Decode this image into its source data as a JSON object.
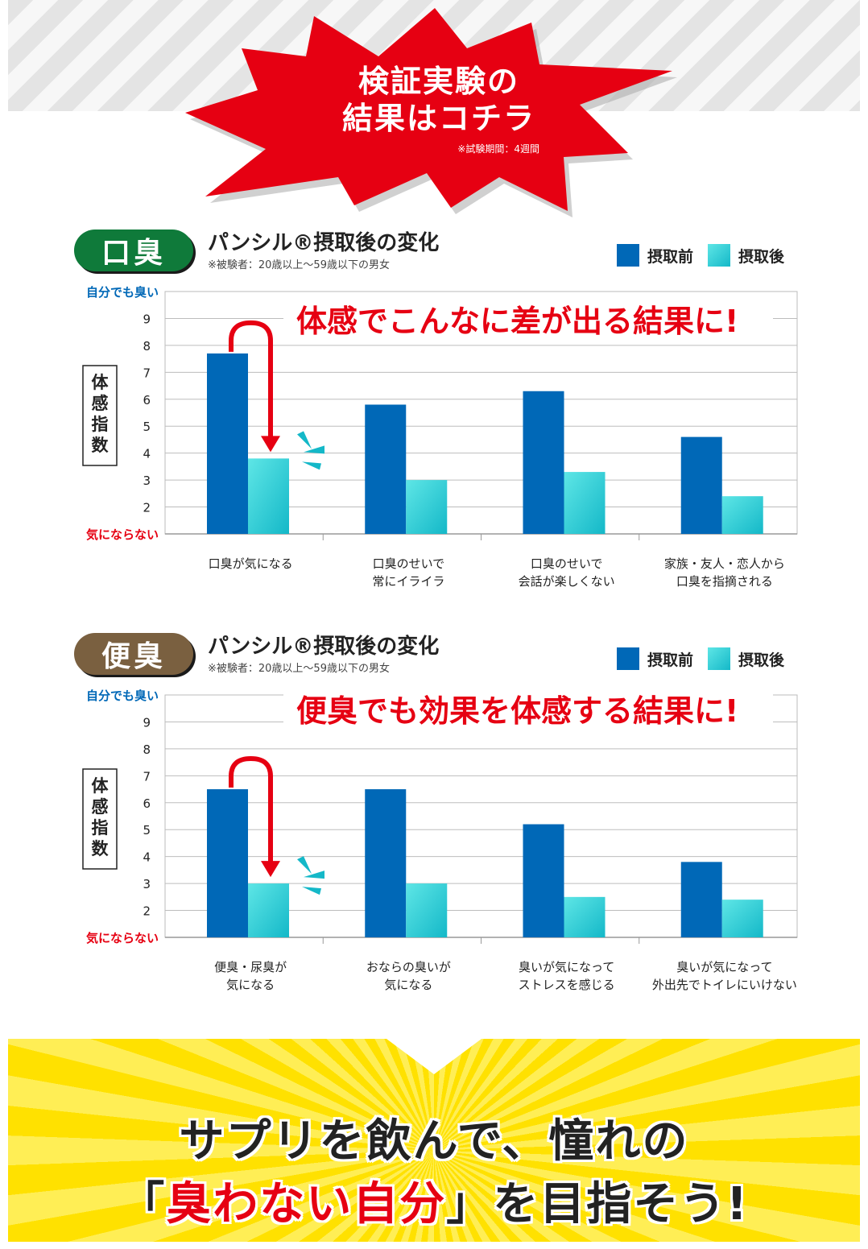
{
  "header": {
    "title_line1": "検証実験の",
    "title_line2": "結果はコチラ",
    "note": "※試験期間：4週間"
  },
  "colors": {
    "burst_red": "#e60012",
    "before": "#0068b7",
    "after_top": "#5ee6e6",
    "after_bottom": "#14b8c8",
    "badge_green": "#0f7a3a",
    "badge_brown": "#7a6040",
    "annotation_red": "#e60012",
    "banner_yellow": "#ffe100"
  },
  "sections": [
    {
      "badge": "口臭",
      "title": "パンシル®摂取後の変化",
      "subtitle": "※被験者：20歳以上〜59歳以下の男女",
      "legend": [
        "摂取前",
        "摂取後"
      ],
      "y_top_label": "自分でも臭い",
      "y_bottom_label": "気にならない",
      "y_axis_title": "体感指数",
      "callout": "体感でこんなに差が出る結果に!"
    },
    {
      "badge": "便臭",
      "title": "パンシル®摂取後の変化",
      "subtitle": "※被験者：20歳以上〜59歳以下の男女",
      "legend": [
        "摂取前",
        "摂取後"
      ],
      "y_top_label": "自分でも臭い",
      "y_bottom_label": "気にならない",
      "y_axis_title": "体感指数",
      "callout": "便臭でも効果を体感する結果に!"
    }
  ],
  "chart_data": [
    {
      "type": "bar",
      "categories": [
        [
          "口臭が気になる"
        ],
        [
          "口臭のせいで",
          "常にイライラ"
        ],
        [
          "口臭のせいで",
          "会話が楽しくない"
        ],
        [
          "家族・友人・恋人から",
          "口臭を指摘される"
        ]
      ],
      "series": [
        {
          "name": "摂取前",
          "values": [
            7.7,
            5.8,
            6.3,
            4.6
          ]
        },
        {
          "name": "摂取後",
          "values": [
            3.8,
            3.0,
            3.3,
            2.4
          ]
        }
      ],
      "yticks": [
        2,
        3,
        4,
        5,
        6,
        7,
        8,
        9
      ],
      "ylim": [
        1,
        10
      ],
      "grid": true,
      "legend": "top-right"
    },
    {
      "type": "bar",
      "categories": [
        [
          "便臭・尿臭が",
          "気になる"
        ],
        [
          "おならの臭いが",
          "気になる"
        ],
        [
          "臭いが気になって",
          "ストレスを感じる"
        ],
        [
          "臭いが気になって",
          "外出先でトイレにいけない"
        ]
      ],
      "series": [
        {
          "name": "摂取前",
          "values": [
            6.5,
            6.5,
            5.2,
            3.8
          ]
        },
        {
          "name": "摂取後",
          "values": [
            3.0,
            3.0,
            2.5,
            2.4
          ]
        }
      ],
      "yticks": [
        2,
        3,
        4,
        5,
        6,
        7,
        8,
        9
      ],
      "ylim": [
        1,
        10
      ],
      "grid": true,
      "legend": "top-right"
    }
  ],
  "bottom": {
    "line1": "サプリを飲んで、憧れの",
    "line2_open": "「",
    "line2_highlight": "臭わない自分",
    "line2_close": "」を目指そう!"
  }
}
